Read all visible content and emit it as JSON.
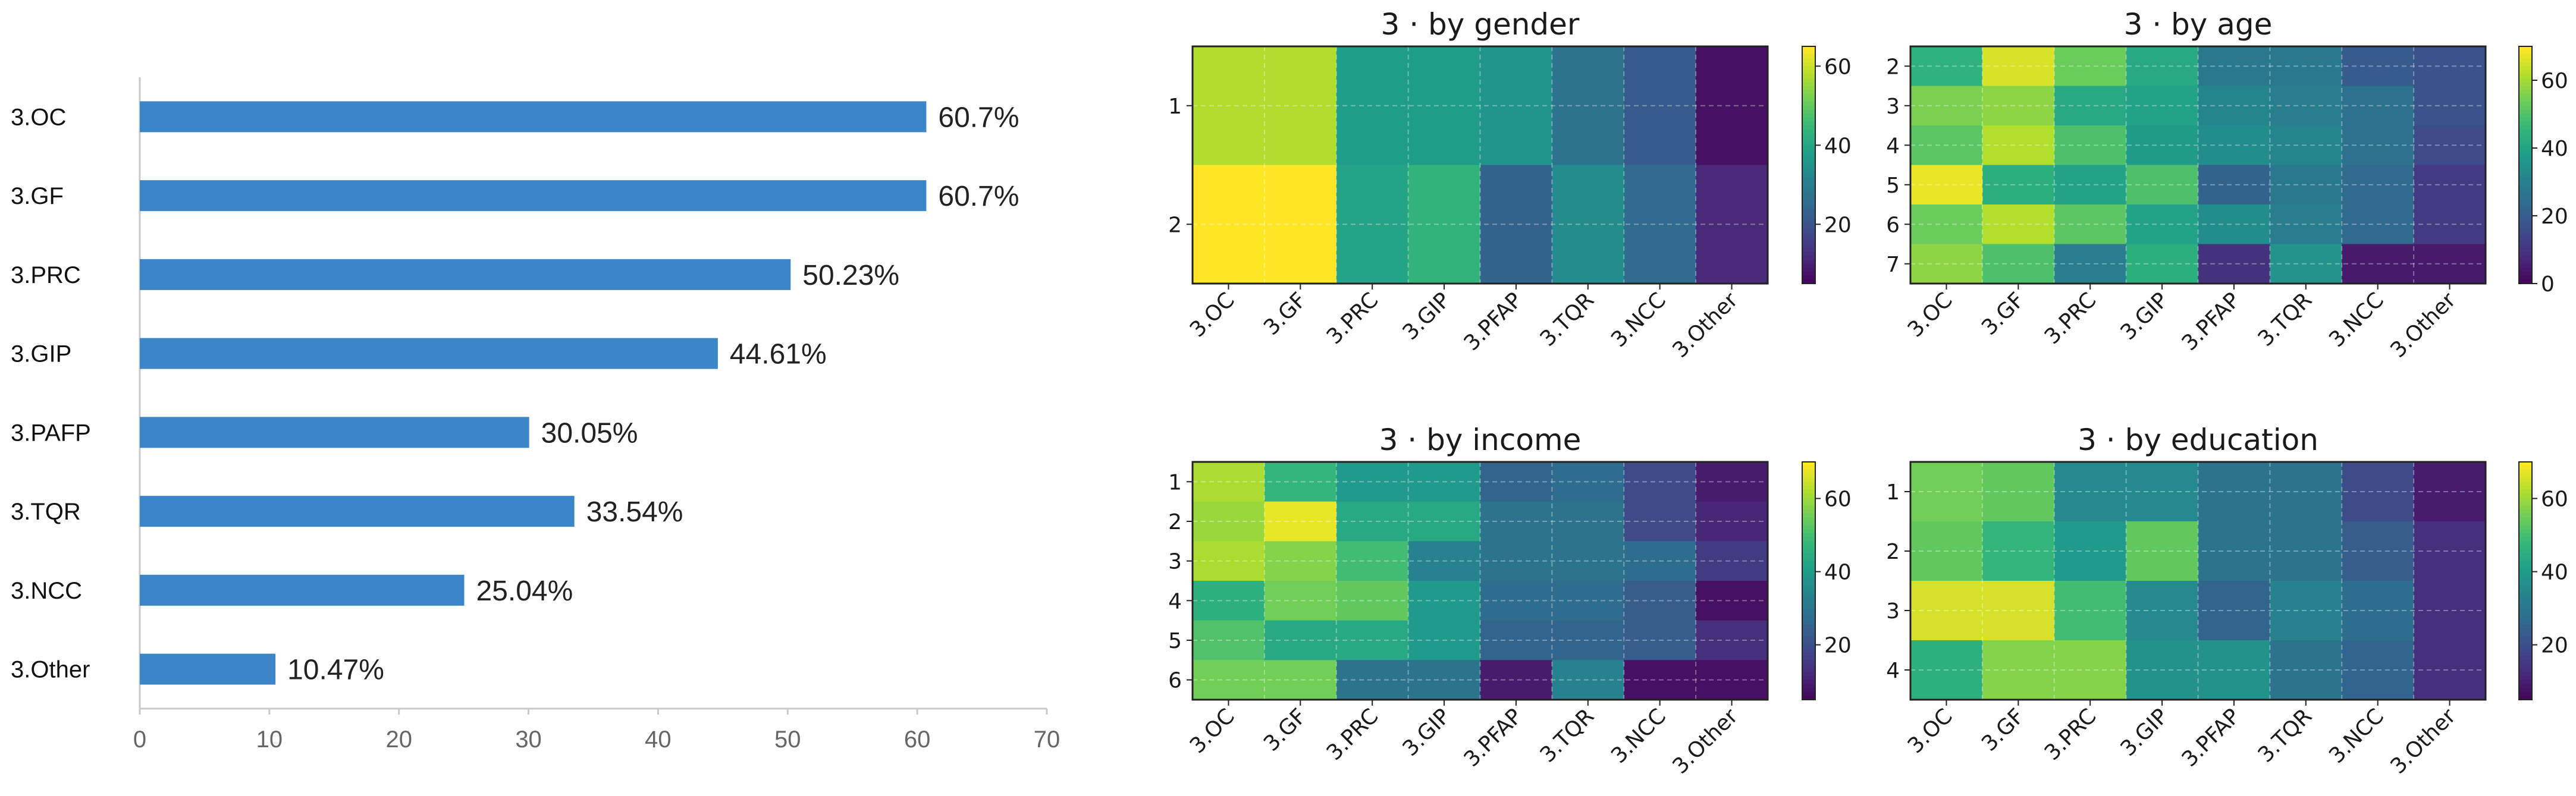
{
  "chart_data": [
    {
      "type": "bar",
      "orientation": "horizontal",
      "categories": [
        "3.OC",
        "3.GF",
        "3.PRC",
        "3.GIP",
        "3.PAFP",
        "3.TQR",
        "3.NCC",
        "3.Other"
      ],
      "values": [
        60.7,
        60.7,
        50.23,
        44.61,
        30.05,
        33.54,
        25.04,
        10.47
      ],
      "value_labels": [
        "60.7%",
        "60.7%",
        "50.23%",
        "44.61%",
        "30.05%",
        "33.54%",
        "25.04%",
        "10.47%"
      ],
      "xlim": [
        0,
        70
      ],
      "xticks": [
        "0",
        "10",
        "20",
        "30",
        "40",
        "50",
        "60",
        "70"
      ],
      "color": "#3a86c8",
      "grid": false
    },
    {
      "type": "heatmap",
      "title": "3 · by gender",
      "x": [
        "3.OC",
        "3.GF",
        "3.PRC",
        "3.GIP",
        "3.PFAP",
        "3.TQR",
        "3.NCC",
        "3.Other"
      ],
      "y": [
        "1",
        "2"
      ],
      "values": [
        [
          58,
          58,
          38,
          38,
          36,
          28,
          22,
          8
        ],
        [
          66,
          66,
          40,
          44,
          24,
          34,
          26,
          12
        ]
      ],
      "colorbar": {
        "min": 5,
        "max": 65,
        "ticks": [
          "20",
          "40",
          "60"
        ]
      }
    },
    {
      "type": "heatmap",
      "title": "3 · by age",
      "x": [
        "3.OC",
        "3.GF",
        "3.PRC",
        "3.GIP",
        "3.PFAP",
        "3.TQR",
        "3.NCC",
        "3.Other"
      ],
      "y": [
        "2",
        "3",
        "4",
        "5",
        "6",
        "7"
      ],
      "values": [
        [
          45,
          66,
          54,
          42,
          28,
          28,
          20,
          18
        ],
        [
          56,
          58,
          42,
          40,
          32,
          30,
          26,
          18
        ],
        [
          52,
          62,
          50,
          38,
          34,
          32,
          26,
          16
        ],
        [
          68,
          44,
          40,
          50,
          22,
          28,
          24,
          12
        ],
        [
          54,
          62,
          52,
          40,
          34,
          30,
          24,
          12
        ],
        [
          58,
          50,
          30,
          44,
          10,
          36,
          5,
          5
        ]
      ],
      "colorbar": {
        "min": 0,
        "max": 70,
        "ticks": [
          "0",
          "20",
          "40",
          "60"
        ]
      }
    },
    {
      "type": "heatmap",
      "title": "3 · by income",
      "x": [
        "3.OC",
        "3.GF",
        "3.PRC",
        "3.GIP",
        "3.PFAP",
        "3.TQR",
        "3.NCC",
        "3.Other"
      ],
      "y": [
        "1",
        "2",
        "3",
        "4",
        "5",
        "6"
      ],
      "values": [
        [
          62,
          48,
          40,
          40,
          26,
          28,
          20,
          10
        ],
        [
          60,
          68,
          44,
          44,
          30,
          30,
          20,
          12
        ],
        [
          62,
          58,
          50,
          34,
          30,
          30,
          28,
          16
        ],
        [
          46,
          56,
          54,
          40,
          28,
          28,
          24,
          8
        ],
        [
          52,
          44,
          44,
          40,
          26,
          26,
          24,
          14
        ],
        [
          56,
          56,
          30,
          30,
          10,
          34,
          8,
          8
        ]
      ],
      "colorbar": {
        "min": 5,
        "max": 70,
        "ticks": [
          "20",
          "40",
          "60"
        ]
      }
    },
    {
      "type": "heatmap",
      "title": "3 · by education",
      "x": [
        "3.OC",
        "3.GF",
        "3.PRC",
        "3.GIP",
        "3.PFAP",
        "3.TQR",
        "3.NCC",
        "3.Other"
      ],
      "y": [
        "1",
        "2",
        "3",
        "4"
      ],
      "values": [
        [
          56,
          54,
          36,
          36,
          30,
          30,
          20,
          10
        ],
        [
          54,
          48,
          40,
          54,
          30,
          30,
          24,
          14
        ],
        [
          66,
          66,
          50,
          36,
          26,
          34,
          28,
          14
        ],
        [
          46,
          58,
          58,
          38,
          38,
          30,
          26,
          14
        ]
      ],
      "colorbar": {
        "min": 5,
        "max": 70,
        "ticks": [
          "20",
          "40",
          "60"
        ]
      }
    }
  ]
}
